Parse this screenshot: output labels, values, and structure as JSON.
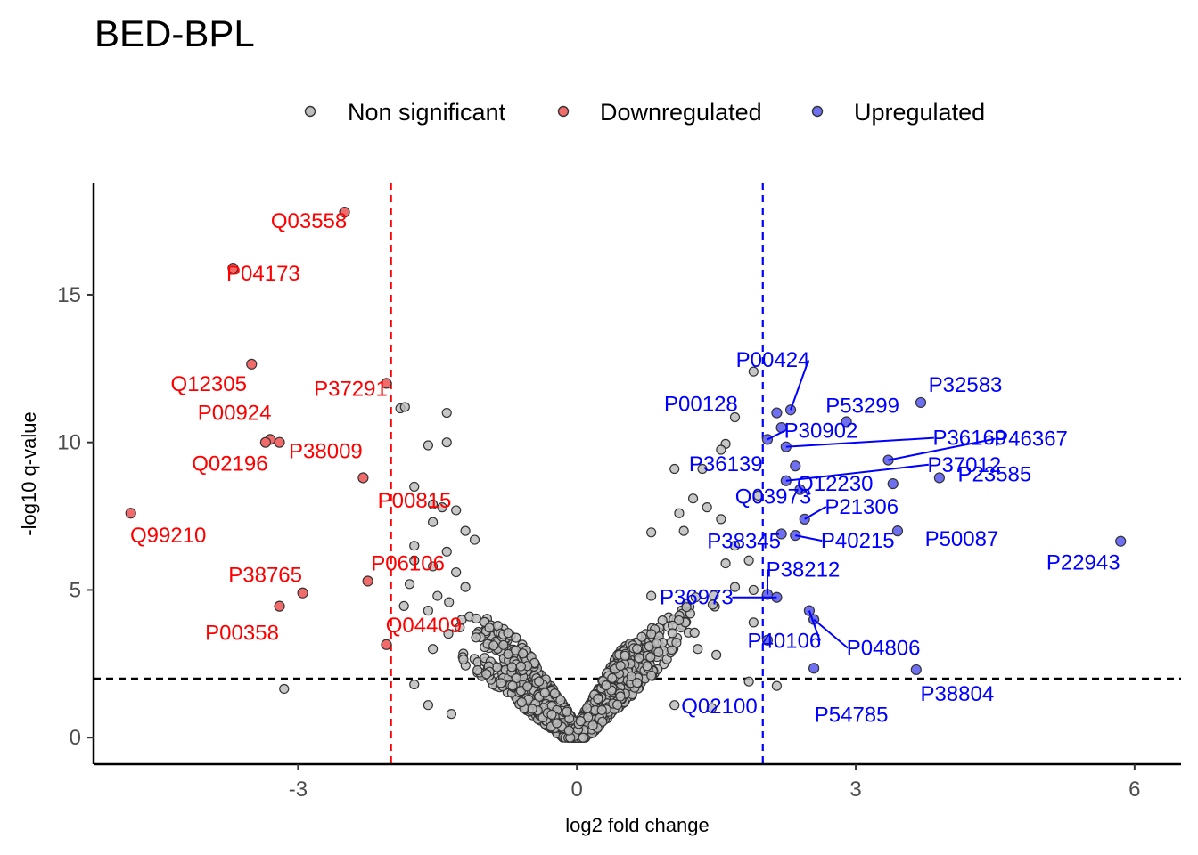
{
  "chart_data": {
    "type": "scatter",
    "title": "BED-BPL",
    "xlabel": "log2 fold change",
    "ylabel": "-log10 q-value",
    "xlim": [
      -5.2,
      6.5
    ],
    "ylim": [
      -0.9,
      18.8
    ],
    "xticks": [
      -3,
      0,
      3,
      6
    ],
    "yticks": [
      0,
      5,
      10,
      15
    ],
    "grid": false,
    "legend_position": "top",
    "thresholds": {
      "fc_low": -2,
      "fc_high": 2,
      "q": 2
    },
    "colors": {
      "nonsig": "#bdbdbd",
      "down": "#f26b6b",
      "up": "#6f6ff2",
      "down_label": "#ff0000",
      "up_label": "#0000ff",
      "point_stroke": "#333333"
    },
    "legend": [
      {
        "key": "nonsig",
        "label": "Non significant"
      },
      {
        "key": "down",
        "label": "Downregulated"
      },
      {
        "key": "up",
        "label": "Upregulated"
      }
    ],
    "down": [
      {
        "x": -2.5,
        "y": 17.8,
        "label": "Q03558"
      },
      {
        "x": -3.7,
        "y": 15.9,
        "label": "P04173"
      },
      {
        "x": -3.5,
        "y": 12.65,
        "label": "Q12305"
      },
      {
        "x": -2.05,
        "y": 12.0,
        "label": "P37291"
      },
      {
        "x": -3.3,
        "y": 10.1,
        "label": "P00924"
      },
      {
        "x": -3.35,
        "y": 10.0,
        "label": "Q02196"
      },
      {
        "x": -3.2,
        "y": 10.0,
        "label": ""
      },
      {
        "x": -2.3,
        "y": 8.8,
        "label": "P38009"
      },
      {
        "x": -4.8,
        "y": 7.6,
        "label": "Q99210"
      },
      {
        "x": -2.25,
        "y": 5.3,
        "label": "P06106"
      },
      {
        "x": -2.95,
        "y": 4.9,
        "label": "P38765"
      },
      {
        "x": -3.2,
        "y": 4.45,
        "label": "P00358"
      },
      {
        "x": -2.05,
        "y": 3.15,
        "label": "Q04409"
      }
    ],
    "down_extra_labels": [
      {
        "label": "P00815"
      }
    ],
    "up": [
      {
        "x": 2.3,
        "y": 11.1,
        "label": "P00424"
      },
      {
        "x": 2.15,
        "y": 11.0,
        "label": "P00128"
      },
      {
        "x": 3.7,
        "y": 11.35,
        "label": "P32583"
      },
      {
        "x": 2.9,
        "y": 10.7,
        "label": "P53299"
      },
      {
        "x": 2.2,
        "y": 10.5,
        "label": ""
      },
      {
        "x": 2.05,
        "y": 10.1,
        "label": "P30902"
      },
      {
        "x": 2.25,
        "y": 9.85,
        "label": "P36169"
      },
      {
        "x": 3.35,
        "y": 9.4,
        "label": "P46367"
      },
      {
        "x": 2.35,
        "y": 9.2,
        "label": "P36139"
      },
      {
        "x": 3.4,
        "y": 8.6,
        "label": "Q12230"
      },
      {
        "x": 3.9,
        "y": 8.8,
        "label": "P23585"
      },
      {
        "x": 2.25,
        "y": 8.7,
        "label": "P37012"
      },
      {
        "x": 2.4,
        "y": 8.4,
        "label": "Q03973"
      },
      {
        "x": 2.45,
        "y": 7.4,
        "label": "P21306"
      },
      {
        "x": 2.2,
        "y": 6.9,
        "label": "P38345"
      },
      {
        "x": 2.35,
        "y": 6.85,
        "label": "P40215"
      },
      {
        "x": 3.45,
        "y": 7.0,
        "label": "P50087"
      },
      {
        "x": 5.85,
        "y": 6.65,
        "label": "P22943"
      },
      {
        "x": 2.05,
        "y": 4.85,
        "label": "P38212"
      },
      {
        "x": 2.15,
        "y": 4.75,
        "label": "P36973"
      },
      {
        "x": 2.5,
        "y": 4.3,
        "label": "P40106"
      },
      {
        "x": 2.55,
        "y": 4.0,
        "label": "P04806"
      },
      {
        "x": 2.05,
        "y": 3.3,
        "label": "Q02100"
      },
      {
        "x": 2.55,
        "y": 2.35,
        "label": "P54785"
      },
      {
        "x": 3.65,
        "y": 2.3,
        "label": "P38804"
      }
    ],
    "nonsig_notable": [
      {
        "x": -1.9,
        "y": 11.15
      },
      {
        "x": -1.85,
        "y": 11.2
      },
      {
        "x": -1.4,
        "y": 11.0
      },
      {
        "x": -1.4,
        "y": 10.0
      },
      {
        "x": -1.6,
        "y": 9.9
      },
      {
        "x": -1.75,
        "y": 8.5
      },
      {
        "x": -1.55,
        "y": 7.9
      },
      {
        "x": -1.45,
        "y": 7.8
      },
      {
        "x": -1.3,
        "y": 7.7
      },
      {
        "x": -1.55,
        "y": 7.3
      },
      {
        "x": -1.2,
        "y": 7.0
      },
      {
        "x": -1.1,
        "y": 6.7
      },
      {
        "x": -1.75,
        "y": 6.5
      },
      {
        "x": -1.4,
        "y": 6.3
      },
      {
        "x": -1.75,
        "y": 6.0
      },
      {
        "x": -1.55,
        "y": 5.8
      },
      {
        "x": -1.3,
        "y": 5.6
      },
      {
        "x": -1.5,
        "y": 4.8
      },
      {
        "x": -1.6,
        "y": 4.3
      },
      {
        "x": -1.8,
        "y": 5.2
      },
      {
        "x": -1.2,
        "y": 5.1
      },
      {
        "x": -3.15,
        "y": 1.65
      },
      {
        "x": -1.55,
        "y": 3.0
      },
      {
        "x": -1.75,
        "y": 1.8
      },
      {
        "x": -1.6,
        "y": 1.1
      },
      {
        "x": -1.35,
        "y": 0.8
      },
      {
        "x": 1.9,
        "y": 12.4
      },
      {
        "x": 1.7,
        "y": 10.85
      },
      {
        "x": 1.6,
        "y": 9.95
      },
      {
        "x": 1.55,
        "y": 9.75
      },
      {
        "x": 1.35,
        "y": 9.1
      },
      {
        "x": 1.05,
        "y": 9.1
      },
      {
        "x": 1.25,
        "y": 8.1
      },
      {
        "x": 1.4,
        "y": 7.8
      },
      {
        "x": 1.95,
        "y": 8.2
      },
      {
        "x": 1.1,
        "y": 7.6
      },
      {
        "x": 1.55,
        "y": 7.4
      },
      {
        "x": 1.15,
        "y": 7.0
      },
      {
        "x": 0.8,
        "y": 6.95
      },
      {
        "x": 1.7,
        "y": 6.5
      },
      {
        "x": 1.85,
        "y": 6.0
      },
      {
        "x": 1.6,
        "y": 5.9
      },
      {
        "x": 0.8,
        "y": 4.8
      },
      {
        "x": 1.7,
        "y": 5.1
      },
      {
        "x": 1.9,
        "y": 5.0
      },
      {
        "x": 1.9,
        "y": 3.9
      },
      {
        "x": 1.3,
        "y": 3.0
      },
      {
        "x": 1.5,
        "y": 2.8
      },
      {
        "x": 1.85,
        "y": 1.9
      },
      {
        "x": 2.15,
        "y": 1.75
      },
      {
        "x": 1.45,
        "y": 1.0
      },
      {
        "x": 1.05,
        "y": 1.1
      }
    ]
  }
}
